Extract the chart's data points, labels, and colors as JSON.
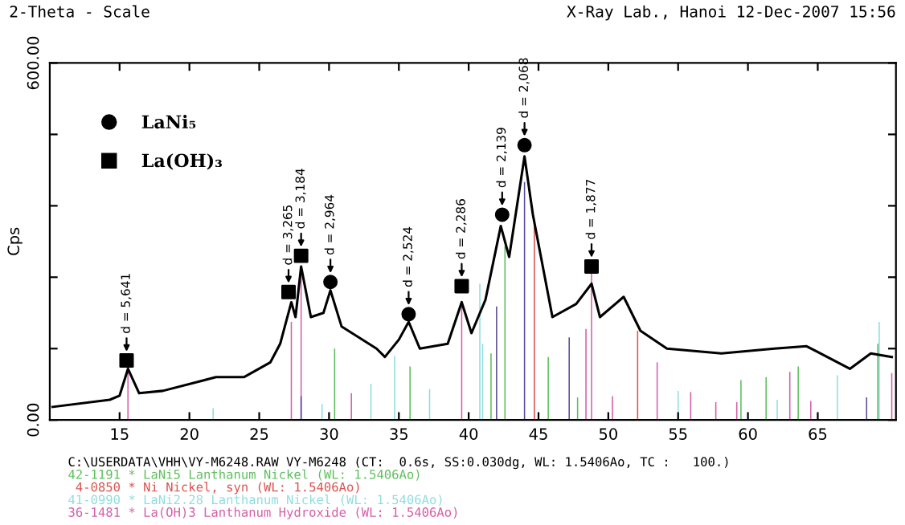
{
  "chart_data": {
    "type": "line",
    "title": "2-Theta - Scale",
    "subtitle": "X-Ray Lab., Hanoi 12-Dec-2007 15:56",
    "ylabel": "Cps",
    "xlim": [
      10,
      70.6
    ],
    "ylim": [
      0,
      600
    ],
    "xticks": [
      15,
      20,
      25,
      30,
      35,
      40,
      45,
      50,
      55,
      60,
      65
    ],
    "yticks": [
      {
        "value": 0,
        "label": "0.00"
      },
      {
        "value": 120,
        "label": null
      },
      {
        "value": 240,
        "label": null
      },
      {
        "value": 360,
        "label": null
      },
      {
        "value": 480,
        "label": null
      },
      {
        "value": 600,
        "label": "600.00"
      }
    ],
    "grid": false,
    "legend": "top left",
    "series": [
      {
        "type": "bar",
        "color": "#5cbf5c",
        "x": [
          30.4,
          35.8,
          41.6,
          42.6,
          45.7,
          47.8,
          59.5,
          61.3,
          63.6,
          69.3
        ],
        "values": [
          120,
          90,
          112,
          292,
          106,
          38,
          67,
          72,
          90,
          128
        ]
      },
      {
        "type": "bar",
        "color": "#d9534f",
        "x": [
          44.7,
          52.1
        ],
        "values": [
          337,
          150
        ]
      },
      {
        "type": "bar",
        "color": "#8fdde0",
        "x": [
          21.7,
          29.5,
          33.0,
          34.7,
          37.2,
          40.8,
          41.0,
          55.0,
          62.1,
          66.4,
          69.4
        ],
        "values": [
          20,
          27,
          61,
          108,
          52,
          229,
          128,
          49,
          34,
          75,
          165
        ]
      },
      {
        "type": "bar",
        "color": "#d45fa8",
        "x": [
          15.6,
          27.3,
          28.0,
          31.6,
          39.5,
          48.4,
          48.8,
          50.3,
          53.5,
          55.9,
          57.7,
          59.2,
          63.0,
          64.5,
          70.3
        ],
        "values": [
          86,
          165,
          250,
          45,
          200,
          153,
          247,
          40,
          97,
          47,
          30,
          30,
          81,
          32,
          79
        ]
      },
      {
        "type": "bar",
        "color": "#5a4a9a",
        "x": [
          28.0,
          42.0,
          44.0,
          47.2,
          68.5
        ],
        "values": [
          40,
          191,
          400,
          139,
          38
        ]
      },
      {
        "color": "#000000",
        "x": [
          10.2,
          14.3,
          15.0,
          15.6,
          16.4,
          18.1,
          21.9,
          23.9,
          25.8,
          26.5,
          27.3,
          27.6,
          28.0,
          28.7,
          29.6,
          30.1,
          30.9,
          33.4,
          34.0,
          35.0,
          35.7,
          36.5,
          38.5,
          39.5,
          40.2,
          41.2,
          42.3,
          42.9,
          44.0,
          44.6,
          46.0,
          47.7,
          48.8,
          49.4,
          51.1,
          52.3,
          54.2,
          58.1,
          61.9,
          64.2,
          67.3,
          68.8,
          70.3
        ],
        "values": [
          22,
          34,
          41,
          86,
          45,
          49,
          72,
          72,
          97,
          128,
          198,
          173,
          258,
          173,
          180,
          218,
          157,
          120,
          106,
          135,
          165,
          120,
          128,
          198,
          146,
          202,
          326,
          274,
          443,
          345,
          173,
          195,
          229,
          173,
          207,
          150,
          120,
          112,
          120,
          124,
          86,
          112,
          106
        ]
      },
      {
        "type": "scatter",
        "name": "LaNi₅",
        "marker": "circle",
        "color": "#000000",
        "x": [
          30.1,
          35.7,
          42.4,
          44.0
        ],
        "values": [
          232,
          178,
          345,
          462
        ]
      },
      {
        "type": "scatter",
        "name": "La(OH)₃",
        "marker": "square",
        "color": "#000000",
        "x": [
          15.5,
          27.1,
          28.0,
          39.5,
          48.8
        ],
        "values": [
          100,
          215,
          276,
          225,
          258
        ]
      }
    ],
    "annotations": [
      {
        "text": "d = 5,641",
        "x": 15.5,
        "y": 100
      },
      {
        "text": "d = 3,265",
        "x": 27.1,
        "y": 215
      },
      {
        "text": "d = 3,184",
        "x": 28.0,
        "y": 276
      },
      {
        "text": "d = 2,964",
        "x": 30.1,
        "y": 232
      },
      {
        "text": "d = 2,524",
        "x": 35.7,
        "y": 178
      },
      {
        "text": "d = 2,286",
        "x": 39.5,
        "y": 225
      },
      {
        "text": "d = 2,139",
        "x": 42.4,
        "y": 345
      },
      {
        "text": "d = 2,068",
        "x": 44.0,
        "y": 462
      },
      {
        "text": "d = 1,877",
        "x": 48.8,
        "y": 258
      },
      "C:\\USERDATA\\VHH\\VY-M6248.RAW VY-M6248 (CT:  0.6s, SS:0.030dg, WL: 1.5406Ao, TC :   100.)",
      "42-1191 * LaNi5 Lanthanum Nickel (WL: 1.5406Ao)",
      " 4-0850 * Ni Nickel, syn (WL: 1.5406Ao)",
      "41-0990 * LaNi2.28 Lanthanum Nickel (WL: 1.5406Ao)",
      "36-1481 * La(OH)3 Lanthanum Hydroxide (WL: 1.5406Ao)"
    ]
  }
}
